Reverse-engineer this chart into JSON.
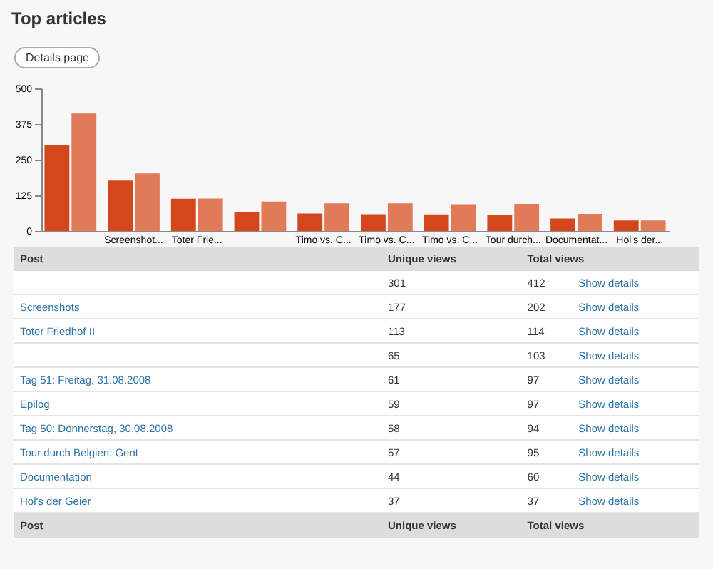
{
  "chart_data": {
    "type": "bar",
    "title": "Top articles",
    "categories": [
      null,
      "Screenshot...",
      "Toter Frie...",
      null,
      "Timo vs. C...",
      "Timo vs. C...",
      "Timo vs. C...",
      "Tour durch...",
      "Documentat...",
      "Hol's der..."
    ],
    "series": [
      {
        "name": "Unique views",
        "color": "#d4471d",
        "values": [
          301,
          177,
          113,
          65,
          61,
          59,
          58,
          57,
          44,
          37
        ]
      },
      {
        "name": "Total views",
        "color": "#e07a58",
        "values": [
          412,
          202,
          114,
          103,
          97,
          97,
          94,
          95,
          60,
          37
        ]
      }
    ],
    "ylim": [
      0,
      500
    ],
    "yticks": [
      0,
      125,
      250,
      375,
      500
    ],
    "grid": false,
    "legend": false,
    "annotations": [
      "Details page",
      "Post",
      "Show details",
      "301",
      "412",
      "Screenshots",
      "177",
      "202",
      "Toter Friedhof II",
      "113",
      "114",
      "65",
      "103",
      "Tag 51: Freitag, 31.08.2008",
      "61",
      "97",
      "Epilog",
      "59",
      "97",
      "Tag 50: Donnerstag, 30.08.2008",
      "58",
      "94",
      "Tour durch Belgien: Gent",
      "57",
      "95",
      "Documentation",
      "44",
      "60",
      "Hol's der Geier",
      "37",
      "37"
    ]
  }
}
